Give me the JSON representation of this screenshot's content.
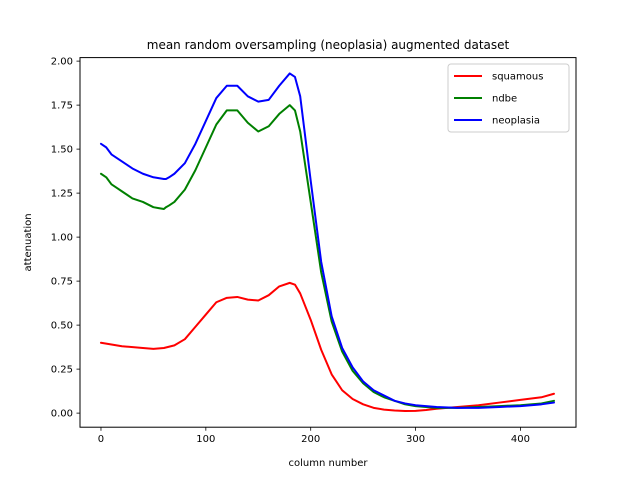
{
  "chart_data": {
    "type": "line",
    "title": "mean random oversampling (neoplasia) augmented dataset",
    "xlabel": "column number",
    "ylabel": "attenuation",
    "xlim": [
      -20,
      453
    ],
    "ylim": [
      -0.08,
      2.02
    ],
    "xticks": [
      0,
      100,
      200,
      300,
      400
    ],
    "yticks": [
      0.0,
      0.25,
      0.5,
      0.75,
      1.0,
      1.25,
      1.5,
      1.75,
      2.0
    ],
    "xtick_labels": [
      "0",
      "100",
      "200",
      "300",
      "400"
    ],
    "ytick_labels": [
      "0.00",
      "0.25",
      "0.50",
      "0.75",
      "1.00",
      "1.25",
      "1.50",
      "1.75",
      "2.00"
    ],
    "grid": false,
    "legend_position": "top-right",
    "series": [
      {
        "name": "squamous",
        "color": "#ff0000",
        "x": [
          0,
          20,
          40,
          50,
          60,
          70,
          80,
          90,
          100,
          110,
          120,
          130,
          140,
          150,
          160,
          170,
          180,
          185,
          190,
          200,
          210,
          220,
          230,
          240,
          250,
          260,
          270,
          280,
          290,
          300,
          310,
          320,
          340,
          360,
          380,
          400,
          420,
          432
        ],
        "y": [
          0.4,
          0.38,
          0.37,
          0.365,
          0.37,
          0.385,
          0.42,
          0.49,
          0.56,
          0.63,
          0.655,
          0.66,
          0.645,
          0.64,
          0.67,
          0.72,
          0.74,
          0.73,
          0.68,
          0.53,
          0.36,
          0.22,
          0.13,
          0.08,
          0.05,
          0.03,
          0.02,
          0.015,
          0.012,
          0.013,
          0.018,
          0.025,
          0.035,
          0.045,
          0.06,
          0.075,
          0.09,
          0.11
        ]
      },
      {
        "name": "ndbe",
        "color": "#008000",
        "x": [
          0,
          5,
          10,
          15,
          20,
          25,
          30,
          40,
          50,
          55,
          60,
          62,
          65,
          70,
          80,
          90,
          100,
          110,
          120,
          130,
          140,
          150,
          160,
          170,
          180,
          185,
          190,
          200,
          210,
          220,
          230,
          240,
          250,
          260,
          270,
          280,
          290,
          300,
          310,
          320,
          340,
          360,
          380,
          400,
          420,
          432
        ],
        "y": [
          1.36,
          1.34,
          1.3,
          1.28,
          1.26,
          1.24,
          1.22,
          1.2,
          1.17,
          1.165,
          1.16,
          1.17,
          1.18,
          1.2,
          1.27,
          1.38,
          1.51,
          1.64,
          1.72,
          1.72,
          1.65,
          1.6,
          1.63,
          1.7,
          1.75,
          1.72,
          1.6,
          1.2,
          0.8,
          0.52,
          0.35,
          0.24,
          0.17,
          0.12,
          0.09,
          0.07,
          0.05,
          0.04,
          0.035,
          0.03,
          0.03,
          0.035,
          0.04,
          0.045,
          0.055,
          0.07
        ]
      },
      {
        "name": "neoplasia",
        "color": "#0000ff",
        "x": [
          0,
          5,
          10,
          15,
          20,
          25,
          30,
          40,
          50,
          55,
          60,
          62,
          65,
          70,
          80,
          90,
          100,
          110,
          120,
          130,
          140,
          150,
          160,
          170,
          180,
          185,
          190,
          200,
          210,
          220,
          230,
          240,
          250,
          260,
          270,
          280,
          290,
          300,
          310,
          320,
          340,
          360,
          380,
          400,
          420,
          432
        ],
        "y": [
          1.53,
          1.51,
          1.47,
          1.45,
          1.43,
          1.41,
          1.39,
          1.36,
          1.34,
          1.335,
          1.33,
          1.33,
          1.34,
          1.36,
          1.42,
          1.53,
          1.66,
          1.79,
          1.86,
          1.86,
          1.8,
          1.77,
          1.78,
          1.86,
          1.93,
          1.91,
          1.8,
          1.32,
          0.86,
          0.55,
          0.37,
          0.26,
          0.18,
          0.13,
          0.1,
          0.07,
          0.055,
          0.045,
          0.04,
          0.035,
          0.03,
          0.03,
          0.035,
          0.04,
          0.05,
          0.06
        ]
      }
    ]
  }
}
